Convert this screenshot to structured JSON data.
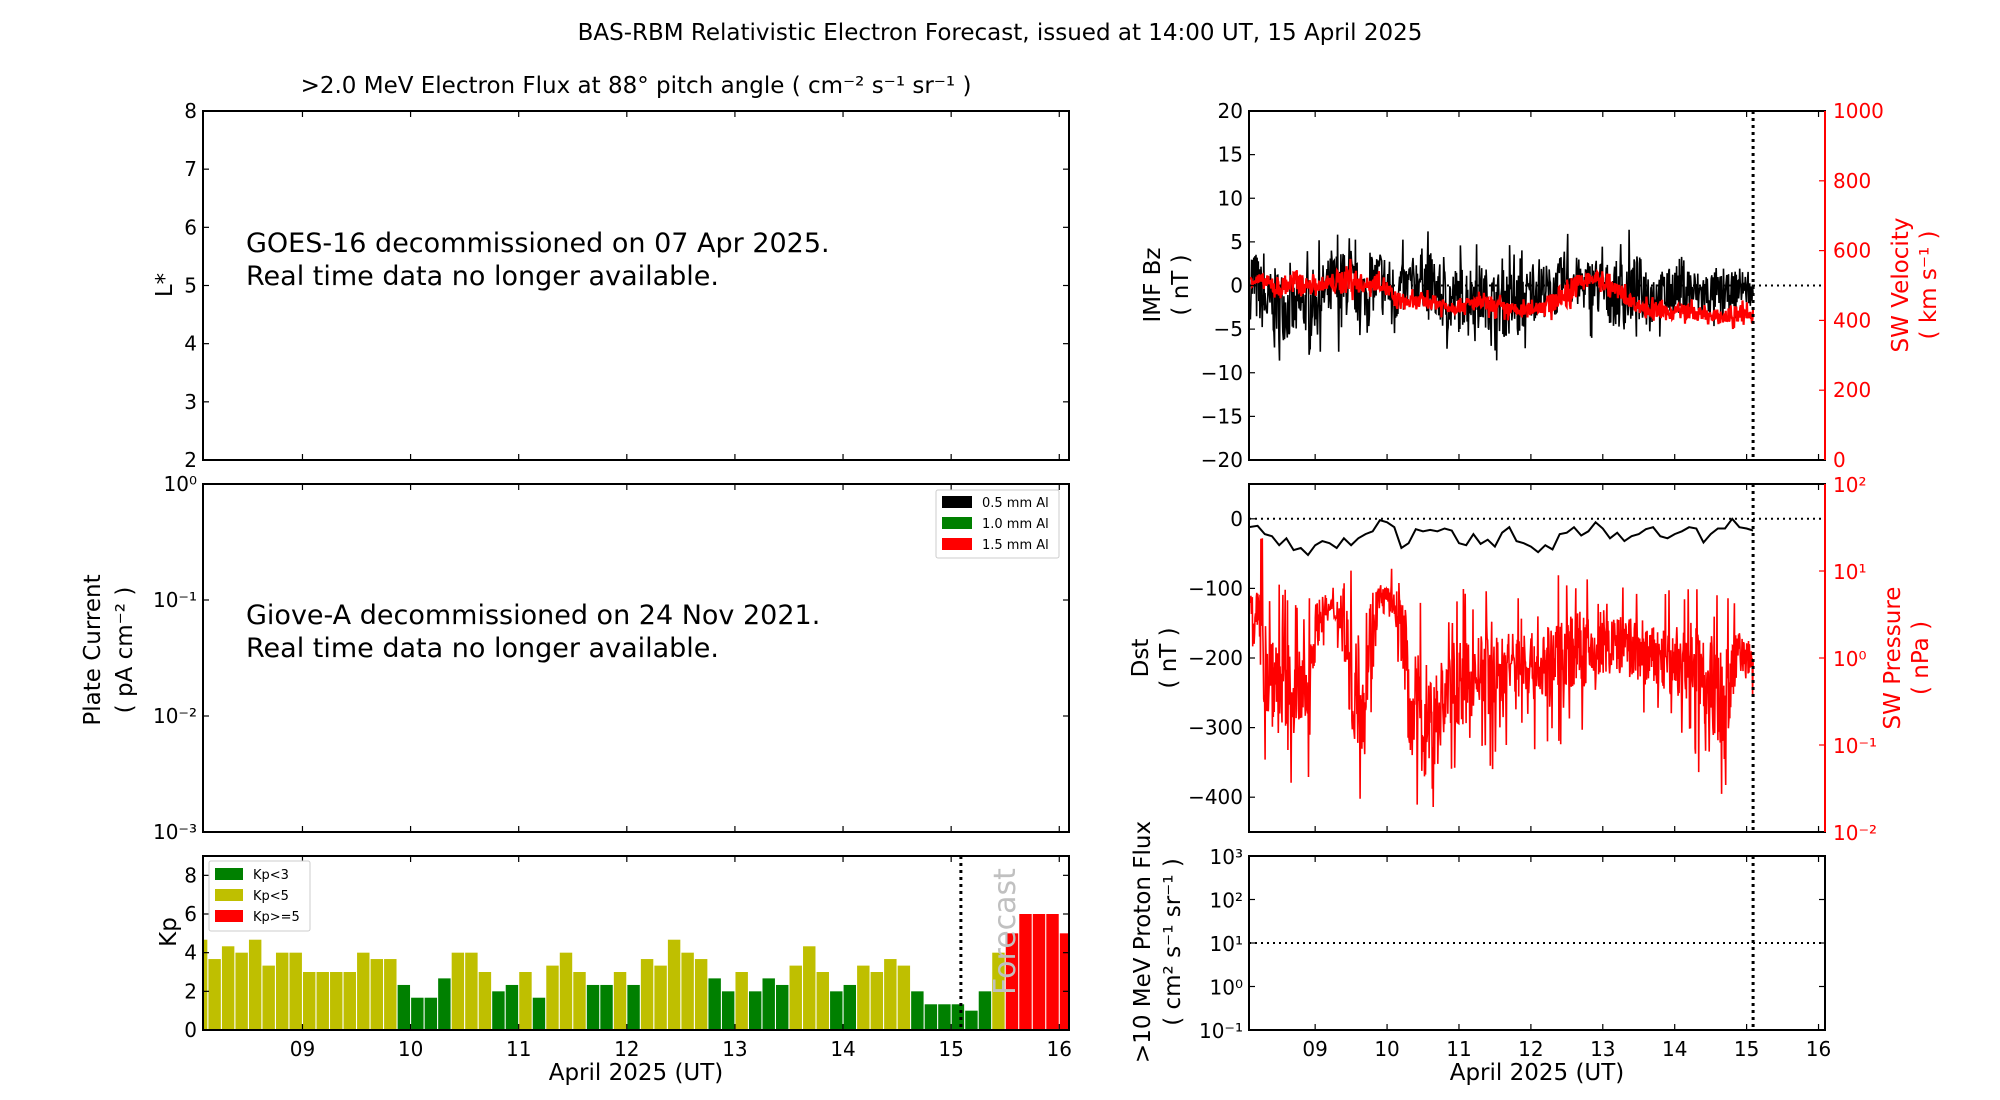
{
  "figure": {
    "title": "BAS-RBM Relativistic Electron Forecast, issued at 14:00 UT, 15 April 2025",
    "xlabel": "April 2025 (UT)",
    "x_range_days": [
      8.08,
      16.09
    ],
    "x_ticks": [
      9,
      10,
      11,
      12,
      13,
      14,
      15,
      16
    ],
    "x_tick_labels": [
      "09",
      "10",
      "11",
      "12",
      "13",
      "14",
      "15",
      "16"
    ],
    "now_marker_day": 15.09
  },
  "chart_data": [
    {
      "id": "electron-flux",
      "type": "heatmap",
      "title": ">2.0 MeV Electron Flux at 88° pitch angle ( cm⁻² s⁻¹ sr⁻¹ )",
      "ylabel": "L*",
      "ylim": [
        2,
        8
      ],
      "y_ticks": [
        2,
        3,
        4,
        5,
        6,
        7,
        8
      ],
      "annotation": [
        "GOES-16 decommissioned on 07 Apr 2025.",
        "Real time data no longer available."
      ]
    },
    {
      "id": "plate-current",
      "type": "line",
      "ylabel": [
        "Plate Current",
        "( pA cm⁻² )"
      ],
      "yscale": "log",
      "ylim": [
        0.001,
        1
      ],
      "y_tick_labels": [
        "10⁰",
        "10⁻¹",
        "10⁻²",
        "10⁻³"
      ],
      "legend": [
        {
          "label": "0.5 mm Al",
          "color": "#000000"
        },
        {
          "label": "1.0 mm Al",
          "color": "#008000"
        },
        {
          "label": "1.5 mm Al",
          "color": "#ff0000"
        }
      ],
      "legend_position": "top-right",
      "annotation": [
        "Giove-A decommissioned on 24 Nov 2021.",
        "Real time data no longer available."
      ]
    },
    {
      "id": "kp",
      "type": "bar",
      "ylabel": "Kp",
      "ylim": [
        0,
        9
      ],
      "y_ticks": [
        0,
        2,
        4,
        6,
        8
      ],
      "forecast_label": "Forecast",
      "bar_start_day": 8.0,
      "bar_step_hours": 3,
      "values": [
        4.67,
        3.67,
        4.33,
        4.0,
        4.67,
        3.33,
        4.0,
        4.0,
        3.0,
        3.0,
        3.0,
        3.0,
        4.0,
        3.67,
        3.67,
        2.33,
        1.67,
        1.67,
        2.67,
        4.0,
        4.0,
        3.0,
        2.0,
        2.33,
        3.0,
        1.67,
        3.33,
        4.0,
        3.0,
        2.33,
        2.33,
        3.0,
        2.33,
        3.67,
        3.33,
        4.67,
        4.0,
        3.67,
        2.67,
        2.0,
        3.0,
        2.0,
        2.67,
        2.33,
        3.33,
        4.33,
        3.0,
        2.0,
        2.33,
        3.33,
        3.0,
        3.67,
        3.33,
        2.0,
        1.33,
        1.33,
        1.33,
        1.0,
        2.0,
        4.0,
        5.0,
        6.0,
        6.0,
        6.0,
        5.0
      ],
      "legend": [
        {
          "label": "Kp<3",
          "color": "#008000"
        },
        {
          "label": "Kp<5",
          "color": "#bfbf00"
        },
        {
          "label": "Kp>=5",
          "color": "#ff0000"
        }
      ],
      "legend_position": "top-left"
    },
    {
      "id": "imf-bz",
      "type": "line",
      "ylabel": [
        "IMF Bz",
        "( nT )"
      ],
      "ylim": [
        -20,
        20
      ],
      "y_ticks": [
        -20,
        -15,
        -10,
        -5,
        0,
        5,
        10,
        15,
        20
      ],
      "ylabel_right": [
        "SW Velocity",
        "( km s⁻¹ )"
      ],
      "ylim_right": [
        0,
        1000
      ],
      "y_ticks_right": [
        0,
        200,
        400,
        600,
        800,
        1000
      ],
      "series": [
        {
          "name": "IMF Bz",
          "color": "#000000",
          "axis": "left",
          "x": [
            8.1,
            8.3,
            8.5,
            8.7,
            8.9,
            9.1,
            9.3,
            9.5,
            9.7,
            9.9,
            10.1,
            10.3,
            10.5,
            10.7,
            10.9,
            11.1,
            11.3,
            11.5,
            11.7,
            11.9,
            12.1,
            12.3,
            12.5,
            12.7,
            12.9,
            13.1,
            13.3,
            13.5,
            13.7,
            13.9,
            14.1,
            14.3,
            14.5,
            14.7,
            14.9,
            15.09
          ],
          "mean": [
            1,
            -2,
            -2,
            -3,
            -2,
            -1,
            0,
            0,
            -1,
            1,
            -1,
            0,
            1,
            -1,
            -2,
            -1,
            -1,
            -2,
            -2,
            -2,
            0,
            -1,
            1,
            0,
            0,
            -1,
            -1,
            0,
            -1,
            -1,
            0,
            -1,
            -1,
            -1,
            0,
            -1
          ],
          "spread": [
            7,
            5,
            6,
            5,
            5,
            5,
            6,
            5,
            4,
            5,
            5,
            4,
            5,
            5,
            6,
            5,
            5,
            5,
            6,
            5,
            5,
            4,
            5,
            4,
            5,
            5,
            6,
            5,
            4,
            4,
            5,
            4,
            4,
            3,
            3,
            2
          ]
        },
        {
          "name": "SW Velocity",
          "color": "#ff0000",
          "axis": "right",
          "x": [
            8.1,
            8.3,
            8.5,
            8.7,
            8.9,
            9.1,
            9.3,
            9.5,
            9.7,
            9.9,
            10.1,
            10.3,
            10.5,
            10.7,
            10.9,
            11.1,
            11.3,
            11.5,
            11.7,
            11.9,
            12.1,
            12.3,
            12.5,
            12.7,
            12.9,
            13.1,
            13.3,
            13.5,
            13.7,
            13.9,
            14.1,
            14.3,
            14.5,
            14.7,
            14.9,
            15.09
          ],
          "mean": [
            520,
            510,
            490,
            510,
            500,
            500,
            510,
            520,
            500,
            515,
            460,
            450,
            455,
            450,
            440,
            445,
            450,
            440,
            430,
            425,
            440,
            450,
            480,
            510,
            520,
            500,
            470,
            440,
            430,
            420,
            430,
            420,
            410,
            410,
            420,
            410
          ],
          "spread": [
            30,
            30,
            40,
            50,
            30,
            20,
            50,
            60,
            30,
            40,
            40,
            30,
            30,
            30,
            30,
            30,
            30,
            30,
            30,
            30,
            30,
            40,
            60,
            40,
            30,
            30,
            30,
            30,
            30,
            30,
            30,
            30,
            30,
            30,
            40,
            30
          ]
        }
      ]
    },
    {
      "id": "dst",
      "type": "line",
      "ylabel": [
        "Dst",
        "( nT )"
      ],
      "ylim": [
        -450,
        50
      ],
      "y_ticks": [
        -400,
        -300,
        -200,
        -100,
        0
      ],
      "ylabel_right": [
        "SW Pressure",
        "( nPa )"
      ],
      "yscale_right": "log",
      "ylim_right": [
        0.01,
        100
      ],
      "y_tick_labels_right": [
        "10⁻²",
        "10⁻¹",
        "10⁰",
        "10¹",
        "10²"
      ],
      "series": [
        {
          "name": "Dst",
          "color": "#000000",
          "axis": "left",
          "x": [
            8.08,
            8.2,
            8.3,
            8.4,
            8.5,
            8.6,
            8.7,
            8.8,
            8.9,
            9.0,
            9.1,
            9.2,
            9.3,
            9.4,
            9.5,
            9.6,
            9.7,
            9.8,
            9.9,
            10.0,
            10.1,
            10.2,
            10.3,
            10.4,
            10.5,
            10.6,
            10.7,
            10.8,
            10.9,
            11.0,
            11.1,
            11.2,
            11.3,
            11.4,
            11.5,
            11.6,
            11.7,
            11.8,
            11.9,
            12.0,
            12.1,
            12.2,
            12.3,
            12.4,
            12.5,
            12.6,
            12.7,
            12.8,
            12.9,
            13.0,
            13.1,
            13.2,
            13.3,
            13.4,
            13.5,
            13.6,
            13.7,
            13.8,
            13.9,
            14.0,
            14.1,
            14.2,
            14.3,
            14.4,
            14.5,
            14.6,
            14.7,
            14.8,
            14.9,
            15.0,
            15.09
          ],
          "y": [
            -12,
            -10,
            -22,
            -25,
            -38,
            -28,
            -45,
            -42,
            -52,
            -38,
            -32,
            -35,
            -42,
            -28,
            -38,
            -28,
            -22,
            -18,
            -2,
            -5,
            -12,
            -42,
            -35,
            -15,
            -18,
            -16,
            -18,
            -14,
            -17,
            -35,
            -38,
            -22,
            -36,
            -30,
            -40,
            -20,
            -12,
            -32,
            -35,
            -40,
            -48,
            -38,
            -44,
            -22,
            -20,
            -12,
            -24,
            -18,
            -5,
            -14,
            -28,
            -20,
            -32,
            -25,
            -22,
            -15,
            -12,
            -25,
            -28,
            -22,
            -18,
            -12,
            -14,
            -34,
            -22,
            -14,
            -14,
            0,
            -12,
            -14,
            -17
          ]
        },
        {
          "name": "SW Pressure",
          "color": "#ff0000",
          "axis": "right",
          "x": [
            8.1,
            8.3,
            8.5,
            8.7,
            8.9,
            9.1,
            9.3,
            9.5,
            9.7,
            9.9,
            10.1,
            10.3,
            10.5,
            10.7,
            10.9,
            11.1,
            11.3,
            11.5,
            11.7,
            11.9,
            12.1,
            12.3,
            12.5,
            12.7,
            12.9,
            13.1,
            13.3,
            13.5,
            13.7,
            13.9,
            14.1,
            14.3,
            14.5,
            14.7,
            14.9,
            15.09
          ],
          "mean": [
            5,
            0.8,
            0.5,
            0.4,
            0.4,
            3.5,
            3.5,
            0.5,
            0.3,
            5,
            4,
            0.3,
            0.2,
            0.2,
            0.5,
            0.5,
            0.7,
            0.6,
            0.8,
            0.9,
            0.7,
            0.9,
            1.3,
            1.2,
            1.1,
            1.5,
            1.3,
            1.2,
            1.0,
            0.9,
            0.8,
            0.7,
            0.5,
            0.2,
            1.2,
            0.9
          ],
          "spread_decades": [
            0.4,
            1.0,
            1.0,
            0.8,
            0.8,
            0.3,
            0.3,
            1.0,
            1.0,
            0.3,
            0.3,
            1.0,
            1.2,
            1.0,
            0.8,
            0.8,
            0.7,
            0.8,
            0.7,
            0.6,
            0.7,
            0.7,
            0.8,
            0.7,
            0.6,
            0.5,
            0.6,
            0.7,
            0.6,
            0.6,
            0.7,
            0.8,
            0.9,
            1.0,
            0.4,
            0.3
          ]
        }
      ]
    },
    {
      "id": "proton-flux",
      "type": "line",
      "ylabel": [
        ">10 MeV Proton Flux",
        "( cm² s⁻¹ sr⁻¹ )"
      ],
      "yscale": "log",
      "ylim": [
        0.1,
        1000
      ],
      "y_tick_labels": [
        "10⁻¹",
        "10⁰",
        "10¹",
        "10²",
        "10³"
      ],
      "threshold": 10
    }
  ]
}
